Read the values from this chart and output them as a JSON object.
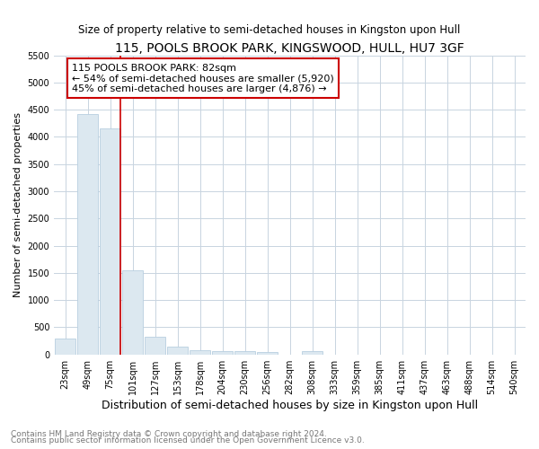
{
  "title": "115, POOLS BROOK PARK, KINGSWOOD, HULL, HU7 3GF",
  "subtitle": "Size of property relative to semi-detached houses in Kingston upon Hull",
  "xlabel": "Distribution of semi-detached houses by size in Kingston upon Hull",
  "ylabel": "Number of semi-detached properties",
  "footnote1": "Contains HM Land Registry data © Crown copyright and database right 2024.",
  "footnote2": "Contains public sector information licensed under the Open Government Licence v3.0.",
  "bar_labels": [
    "23sqm",
    "49sqm",
    "75sqm",
    "101sqm",
    "127sqm",
    "153sqm",
    "178sqm",
    "204sqm",
    "230sqm",
    "256sqm",
    "282sqm",
    "308sqm",
    "333sqm",
    "359sqm",
    "385sqm",
    "411sqm",
    "437sqm",
    "463sqm",
    "488sqm",
    "514sqm",
    "540sqm"
  ],
  "bar_values": [
    300,
    4420,
    4150,
    1550,
    325,
    150,
    80,
    60,
    60,
    50,
    0,
    60,
    0,
    0,
    0,
    0,
    0,
    0,
    0,
    0,
    0
  ],
  "bar_color": "#dce8f0",
  "bar_edge_color": "#b8cfe0",
  "ylim": [
    0,
    5500
  ],
  "yticks": [
    0,
    500,
    1000,
    1500,
    2000,
    2500,
    3000,
    3500,
    4000,
    4500,
    5000,
    5500
  ],
  "property_label": "115 POOLS BROOK PARK: 82sqm",
  "pct_smaller": 54,
  "pct_smaller_count": "5,920",
  "pct_larger": 45,
  "pct_larger_count": "4,876",
  "vline_color": "#cc0000",
  "grid_color": "#c8d4e0",
  "background_color": "#ffffff",
  "title_fontsize": 10,
  "subtitle_fontsize": 8.5,
  "annotation_fontsize": 8,
  "tick_fontsize": 7,
  "ylabel_fontsize": 8,
  "xlabel_fontsize": 9,
  "footnote_fontsize": 6.5
}
